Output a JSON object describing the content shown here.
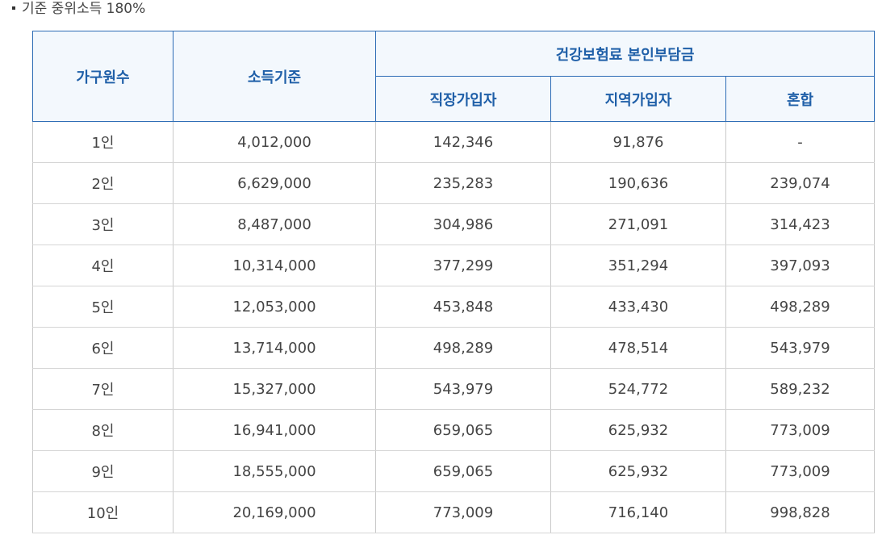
{
  "caption": "기준 중위소득 180%",
  "table": {
    "headers": {
      "household": "가구원수",
      "income": "소득기준",
      "premium_group": "건강보험료 본인부담금",
      "employee": "직장가입자",
      "regional": "지역가입자",
      "mixed": "혼합"
    },
    "rows": [
      {
        "household": "1인",
        "income": "4,012,000",
        "employee": "142,346",
        "regional": "91,876",
        "mixed": "-"
      },
      {
        "household": "2인",
        "income": "6,629,000",
        "employee": "235,283",
        "regional": "190,636",
        "mixed": "239,074"
      },
      {
        "household": "3인",
        "income": "8,487,000",
        "employee": "304,986",
        "regional": "271,091",
        "mixed": "314,423"
      },
      {
        "household": "4인",
        "income": "10,314,000",
        "employee": "377,299",
        "regional": "351,294",
        "mixed": "397,093"
      },
      {
        "household": "5인",
        "income": "12,053,000",
        "employee": "453,848",
        "regional": "433,430",
        "mixed": "498,289"
      },
      {
        "household": "6인",
        "income": "13,714,000",
        "employee": "498,289",
        "regional": "478,514",
        "mixed": "543,979"
      },
      {
        "household": "7인",
        "income": "15,327,000",
        "employee": "543,979",
        "regional": "524,772",
        "mixed": "589,232"
      },
      {
        "household": "8인",
        "income": "16,941,000",
        "employee": "659,065",
        "regional": "625,932",
        "mixed": "773,009"
      },
      {
        "household": "9인",
        "income": "18,555,000",
        "employee": "659,065",
        "regional": "625,932",
        "mixed": "773,009"
      },
      {
        "household": "10인",
        "income": "20,169,000",
        "employee": "773,009",
        "regional": "716,140",
        "mixed": "998,828"
      }
    ]
  }
}
